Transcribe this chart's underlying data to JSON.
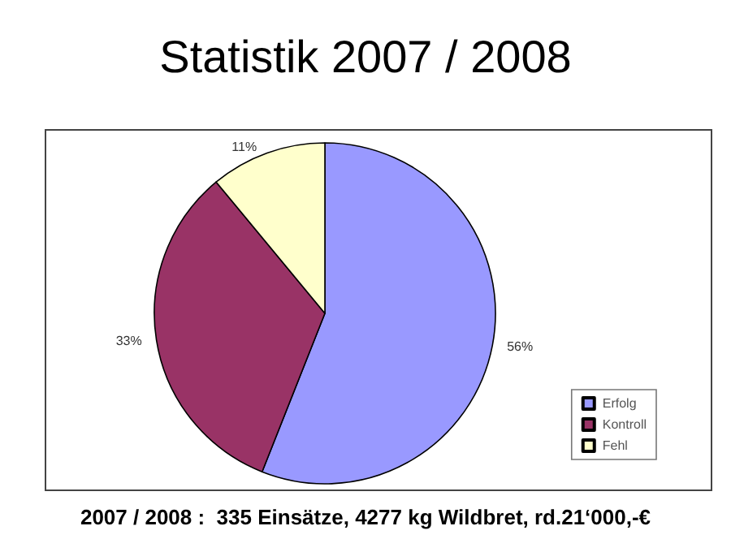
{
  "chart_data": {
    "type": "pie",
    "title": "Statistik 2007 / 2008",
    "categories": [
      "Erfolg",
      "Kontroll",
      "Fehl"
    ],
    "values": [
      56,
      33,
      11
    ],
    "value_labels": [
      "56%",
      "33%",
      "11%"
    ],
    "colors": [
      "#9999ff",
      "#993366",
      "#ffffcc"
    ],
    "legend": "bottom right",
    "annotations": [
      "2007 / 2008 :  335 Einsätze, 4277 kg Wildbret, rd.21‘000,-€"
    ]
  }
}
